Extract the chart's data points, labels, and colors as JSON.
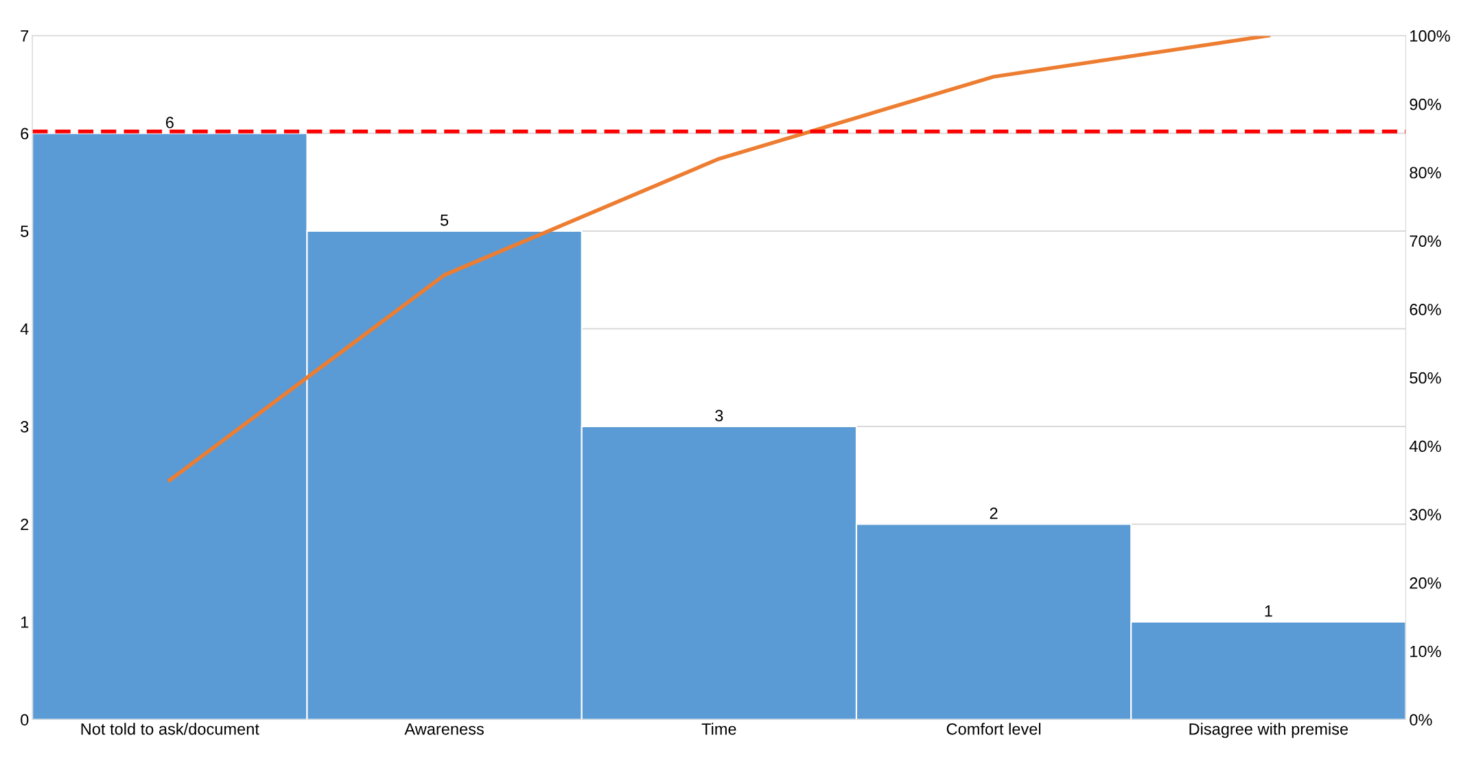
{
  "chart_data": {
    "type": "bar",
    "categories": [
      "Not told to ask/document",
      "Awareness",
      "Time",
      "Comfort level",
      "Disagree with premise"
    ],
    "series": [
      {
        "color": "#5b9bd5",
        "values": [
          6,
          5,
          3,
          2,
          1
        ],
        "value_labels": [
          "6",
          "5",
          "3",
          "2",
          "1"
        ]
      },
      {
        "type": "line",
        "axis": "y2",
        "color": "#ed7d31",
        "values": [
          35,
          65,
          82,
          94,
          100
        ]
      }
    ],
    "ylim": [
      0,
      7
    ],
    "yticks": [
      0,
      1,
      2,
      3,
      4,
      5,
      6,
      7
    ],
    "y2lim": [
      0,
      100
    ],
    "y2ticks": [
      {
        "value": 0,
        "label": "0%"
      },
      {
        "value": 10,
        "label": "10%"
      },
      {
        "value": 20,
        "label": "20%"
      },
      {
        "value": 30,
        "label": "30%"
      },
      {
        "value": 40,
        "label": "40%"
      },
      {
        "value": 50,
        "label": "50%"
      },
      {
        "value": 60,
        "label": "60%"
      },
      {
        "value": 70,
        "label": "70%"
      },
      {
        "value": 80,
        "label": "80%"
      },
      {
        "value": 90,
        "label": "90%"
      },
      {
        "value": 100,
        "label": "100%"
      }
    ],
    "ref_lines": [
      {
        "axis": "y2",
        "value": 86,
        "color": "#ff0000",
        "line_style": "dashed"
      }
    ],
    "grid": "y"
  }
}
